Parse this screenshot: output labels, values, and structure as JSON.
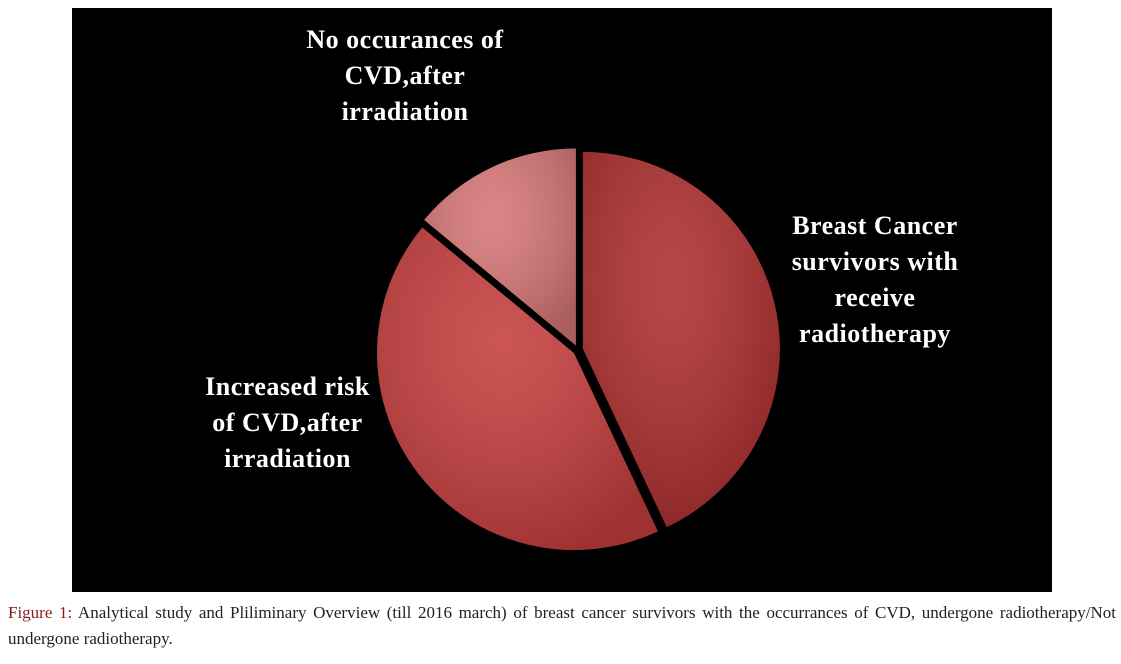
{
  "chart_data": {
    "type": "pie",
    "categories": [
      "Breast Cancer survivors with receive radiotherapy",
      "Increased risk of CVD,after irradiation",
      "No occurances of CVD,after irradiation"
    ],
    "values": [
      43,
      43,
      14
    ],
    "colors": [
      "#ad2e2e",
      "#c53d3d",
      "#d67676"
    ]
  },
  "caption": {
    "label": "Figure 1:",
    "text": "Analytical study and Pliliminary Overview (till 2016 march) of breast cancer survivors with the occurrances of CVD, undergone radiotherapy/Not undergone radiotherapy."
  }
}
